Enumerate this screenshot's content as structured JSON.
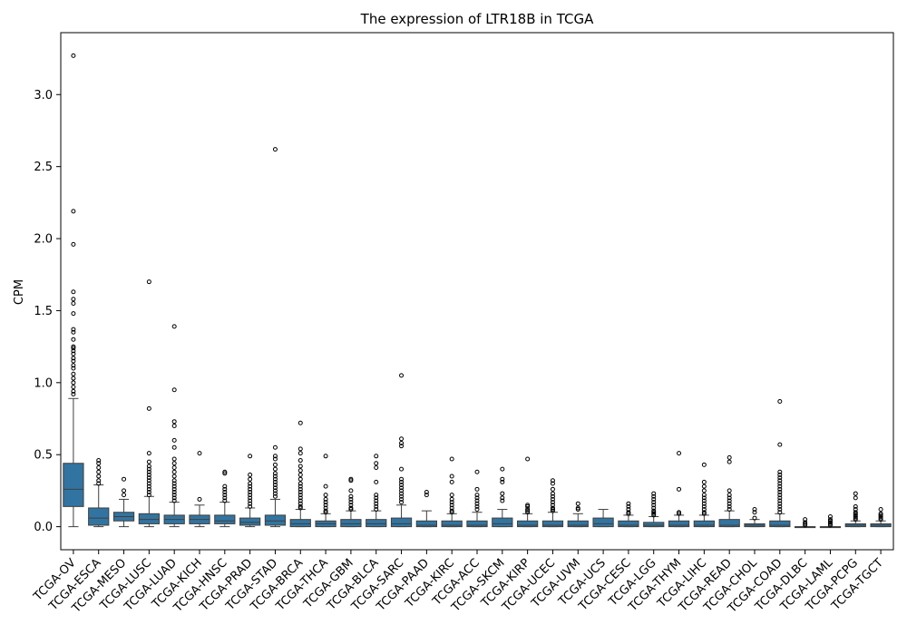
{
  "chart_data": {
    "type": "box",
    "title": "The expression of LTR18B in TCGA",
    "xlabel": "",
    "ylabel": "CPM",
    "ylim": [
      -0.16,
      3.43
    ],
    "yticks": [
      "0.0",
      "0.5",
      "1.0",
      "1.5",
      "2.0",
      "2.5",
      "3.0"
    ],
    "yticks_values": [
      0.0,
      0.5,
      1.0,
      1.5,
      2.0,
      2.5,
      3.0
    ],
    "grid": false,
    "box_color": "#3274a1",
    "categories": [
      "TCGA-OV",
      "TCGA-ESCA",
      "TCGA-MESO",
      "TCGA-LUSC",
      "TCGA-LUAD",
      "TCGA-KICH",
      "TCGA-HNSC",
      "TCGA-PRAD",
      "TCGA-STAD",
      "TCGA-BRCA",
      "TCGA-THCA",
      "TCGA-GBM",
      "TCGA-BLCA",
      "TCGA-SARC",
      "TCGA-PAAD",
      "TCGA-KIRC",
      "TCGA-ACC",
      "TCGA-SKCM",
      "TCGA-KIRP",
      "TCGA-UCEC",
      "TCGA-UVM",
      "TCGA-UCS",
      "TCGA-CESC",
      "TCGA-LGG",
      "TCGA-THYM",
      "TCGA-LIHC",
      "TCGA-READ",
      "TCGA-CHOL",
      "TCGA-COAD",
      "TCGA-DLBC",
      "TCGA-LAML",
      "TCGA-PCPG",
      "TCGA-TGCT"
    ],
    "boxes": [
      {
        "q1": 0.14,
        "median": 0.26,
        "q3": 0.44,
        "whisker_low": 0.0,
        "whisker_high": 0.89,
        "outliers": [
          3.27,
          2.19,
          1.96,
          1.63,
          1.58,
          1.55,
          1.48,
          1.37,
          1.35,
          1.3,
          1.25,
          1.24,
          1.22,
          1.2,
          1.17,
          1.15,
          1.12,
          1.1,
          1.06,
          1.03,
          1.0,
          0.97,
          0.94,
          0.92
        ]
      },
      {
        "q1": 0.01,
        "median": 0.06,
        "q3": 0.13,
        "whisker_low": 0.0,
        "whisker_high": 0.29,
        "outliers": [
          0.46,
          0.44,
          0.41,
          0.38,
          0.35,
          0.32,
          0.3
        ]
      },
      {
        "q1": 0.04,
        "median": 0.07,
        "q3": 0.1,
        "whisker_low": 0.0,
        "whisker_high": 0.19,
        "outliers": [
          0.33,
          0.25,
          0.22
        ]
      },
      {
        "q1": 0.02,
        "median": 0.05,
        "q3": 0.09,
        "whisker_low": 0.0,
        "whisker_high": 0.21,
        "outliers": [
          1.7,
          0.82,
          0.51,
          0.45,
          0.42,
          0.4,
          0.38,
          0.36,
          0.34,
          0.32,
          0.3,
          0.28,
          0.26,
          0.24,
          0.22
        ]
      },
      {
        "q1": 0.02,
        "median": 0.05,
        "q3": 0.08,
        "whisker_low": 0.0,
        "whisker_high": 0.17,
        "outliers": [
          1.39,
          0.95,
          0.73,
          0.7,
          0.6,
          0.55,
          0.47,
          0.44,
          0.41,
          0.38,
          0.35,
          0.32,
          0.3,
          0.28,
          0.26,
          0.24,
          0.22,
          0.2,
          0.18
        ]
      },
      {
        "q1": 0.02,
        "median": 0.05,
        "q3": 0.08,
        "whisker_low": 0.0,
        "whisker_high": 0.15,
        "outliers": [
          0.51,
          0.19
        ]
      },
      {
        "q1": 0.02,
        "median": 0.04,
        "q3": 0.08,
        "whisker_low": 0.0,
        "whisker_high": 0.17,
        "outliers": [
          0.38,
          0.37,
          0.28,
          0.26,
          0.24,
          0.22,
          0.2,
          0.18
        ]
      },
      {
        "q1": 0.01,
        "median": 0.03,
        "q3": 0.06,
        "whisker_low": 0.0,
        "whisker_high": 0.13,
        "outliers": [
          0.49,
          0.36,
          0.33,
          0.3,
          0.28,
          0.26,
          0.24,
          0.22,
          0.2,
          0.18,
          0.16,
          0.14
        ]
      },
      {
        "q1": 0.01,
        "median": 0.04,
        "q3": 0.08,
        "whisker_low": 0.0,
        "whisker_high": 0.19,
        "outliers": [
          2.62,
          0.55,
          0.49,
          0.47,
          0.43,
          0.4,
          0.37,
          0.35,
          0.33,
          0.31,
          0.29,
          0.27,
          0.25,
          0.23,
          0.21
        ]
      },
      {
        "q1": 0.0,
        "median": 0.02,
        "q3": 0.05,
        "whisker_low": 0.0,
        "whisker_high": 0.12,
        "outliers": [
          0.72,
          0.54,
          0.51,
          0.46,
          0.42,
          0.39,
          0.36,
          0.33,
          0.3,
          0.28,
          0.26,
          0.24,
          0.22,
          0.2,
          0.18,
          0.16,
          0.14,
          0.13
        ]
      },
      {
        "q1": 0.0,
        "median": 0.02,
        "q3": 0.04,
        "whisker_low": 0.0,
        "whisker_high": 0.09,
        "outliers": [
          0.49,
          0.28,
          0.22,
          0.19,
          0.17,
          0.15,
          0.13,
          0.11,
          0.1
        ]
      },
      {
        "q1": 0.0,
        "median": 0.02,
        "q3": 0.05,
        "whisker_low": 0.0,
        "whisker_high": 0.11,
        "outliers": [
          0.33,
          0.32,
          0.25,
          0.21,
          0.19,
          0.17,
          0.15,
          0.13,
          0.12
        ]
      },
      {
        "q1": 0.0,
        "median": 0.02,
        "q3": 0.05,
        "whisker_low": 0.0,
        "whisker_high": 0.11,
        "outliers": [
          0.49,
          0.44,
          0.41,
          0.31,
          0.22,
          0.2,
          0.18,
          0.16,
          0.14,
          0.12
        ]
      },
      {
        "q1": 0.0,
        "median": 0.02,
        "q3": 0.06,
        "whisker_low": 0.0,
        "whisker_high": 0.15,
        "outliers": [
          1.05,
          0.61,
          0.58,
          0.56,
          0.4,
          0.33,
          0.31,
          0.29,
          0.27,
          0.25,
          0.23,
          0.21,
          0.19,
          0.17
        ]
      },
      {
        "q1": 0.0,
        "median": 0.01,
        "q3": 0.04,
        "whisker_low": 0.0,
        "whisker_high": 0.11,
        "outliers": [
          0.24,
          0.22
        ]
      },
      {
        "q1": 0.0,
        "median": 0.01,
        "q3": 0.04,
        "whisker_low": 0.0,
        "whisker_high": 0.09,
        "outliers": [
          0.47,
          0.35,
          0.31,
          0.22,
          0.19,
          0.17,
          0.15,
          0.13,
          0.11,
          0.1
        ]
      },
      {
        "q1": 0.0,
        "median": 0.01,
        "q3": 0.04,
        "whisker_low": 0.0,
        "whisker_high": 0.1,
        "outliers": [
          0.38,
          0.26,
          0.22,
          0.2,
          0.18,
          0.16,
          0.14,
          0.12
        ]
      },
      {
        "q1": 0.0,
        "median": 0.02,
        "q3": 0.06,
        "whisker_low": 0.0,
        "whisker_high": 0.12,
        "outliers": [
          0.4,
          0.33,
          0.31,
          0.23,
          0.2,
          0.18
        ]
      },
      {
        "q1": 0.0,
        "median": 0.01,
        "q3": 0.04,
        "whisker_low": 0.0,
        "whisker_high": 0.09,
        "outliers": [
          0.47,
          0.15,
          0.14,
          0.12,
          0.11,
          0.1
        ]
      },
      {
        "q1": 0.0,
        "median": 0.01,
        "q3": 0.04,
        "whisker_low": 0.0,
        "whisker_high": 0.1,
        "outliers": [
          0.32,
          0.3,
          0.26,
          0.23,
          0.21,
          0.19,
          0.17,
          0.15,
          0.13,
          0.12,
          0.11
        ]
      },
      {
        "q1": 0.0,
        "median": 0.01,
        "q3": 0.04,
        "whisker_low": 0.0,
        "whisker_high": 0.09,
        "outliers": [
          0.16,
          0.13,
          0.12
        ]
      },
      {
        "q1": 0.0,
        "median": 0.02,
        "q3": 0.06,
        "whisker_low": 0.0,
        "whisker_high": 0.12,
        "outliers": []
      },
      {
        "q1": 0.0,
        "median": 0.01,
        "q3": 0.04,
        "whisker_low": 0.0,
        "whisker_high": 0.08,
        "outliers": [
          0.16,
          0.14,
          0.12,
          0.1,
          0.09
        ]
      },
      {
        "q1": 0.0,
        "median": 0.01,
        "q3": 0.03,
        "whisker_low": 0.0,
        "whisker_high": 0.07,
        "outliers": [
          0.23,
          0.21,
          0.19,
          0.17,
          0.15,
          0.13,
          0.11,
          0.1,
          0.09,
          0.08
        ]
      },
      {
        "q1": 0.0,
        "median": 0.01,
        "q3": 0.04,
        "whisker_low": 0.0,
        "whisker_high": 0.08,
        "outliers": [
          0.51,
          0.26,
          0.1,
          0.09
        ]
      },
      {
        "q1": 0.0,
        "median": 0.01,
        "q3": 0.04,
        "whisker_low": 0.0,
        "whisker_high": 0.08,
        "outliers": [
          0.43,
          0.31,
          0.28,
          0.25,
          0.22,
          0.2,
          0.18,
          0.16,
          0.14,
          0.12,
          0.1,
          0.09
        ]
      },
      {
        "q1": 0.0,
        "median": 0.01,
        "q3": 0.05,
        "whisker_low": 0.0,
        "whisker_high": 0.11,
        "outliers": [
          0.48,
          0.45,
          0.25,
          0.22,
          0.2,
          0.18,
          0.16,
          0.14,
          0.12
        ]
      },
      {
        "q1": 0.0,
        "median": 0.01,
        "q3": 0.02,
        "whisker_low": 0.0,
        "whisker_high": 0.05,
        "outliers": [
          0.12,
          0.1,
          0.06
        ]
      },
      {
        "q1": 0.0,
        "median": 0.01,
        "q3": 0.04,
        "whisker_low": 0.0,
        "whisker_high": 0.09,
        "outliers": [
          0.87,
          0.57,
          0.38,
          0.36,
          0.34,
          0.32,
          0.3,
          0.28,
          0.26,
          0.24,
          0.22,
          0.2,
          0.18,
          0.16,
          0.14,
          0.12,
          0.1
        ]
      },
      {
        "q1": 0.0,
        "median": 0.0,
        "q3": 0.0,
        "whisker_low": 0.0,
        "whisker_high": 0.0,
        "outliers": [
          0.05,
          0.03,
          0.02,
          0.01
        ]
      },
      {
        "q1": 0.0,
        "median": 0.0,
        "q3": 0.0,
        "whisker_low": 0.0,
        "whisker_high": 0.0,
        "outliers": [
          0.07,
          0.05,
          0.04,
          0.03,
          0.02,
          0.01
        ]
      },
      {
        "q1": 0.0,
        "median": 0.01,
        "q3": 0.02,
        "whisker_low": 0.0,
        "whisker_high": 0.04,
        "outliers": [
          0.23,
          0.2,
          0.14,
          0.12,
          0.1,
          0.09,
          0.08,
          0.07,
          0.06,
          0.05
        ]
      },
      {
        "q1": 0.0,
        "median": 0.01,
        "q3": 0.02,
        "whisker_low": 0.0,
        "whisker_high": 0.04,
        "outliers": [
          0.12,
          0.09,
          0.08,
          0.07,
          0.06,
          0.05
        ]
      }
    ]
  }
}
